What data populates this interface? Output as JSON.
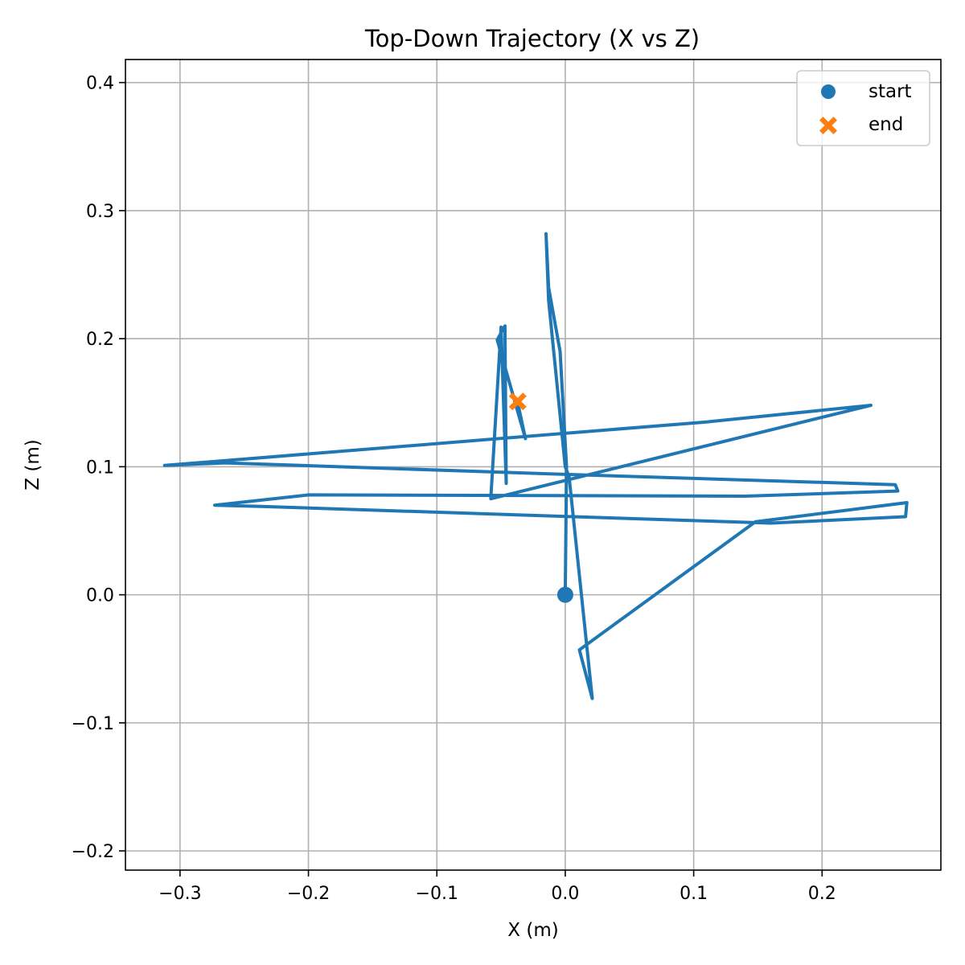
{
  "chart_data": {
    "type": "line",
    "title": "Top-Down Trajectory (X vs Z)",
    "xlabel": "X (m)",
    "ylabel": "Z (m)",
    "xlim": [
      -0.3425,
      0.2925
    ],
    "ylim": [
      -0.215,
      0.418
    ],
    "x_ticks": [
      -0.3,
      -0.2,
      -0.1,
      0.0,
      0.1,
      0.2
    ],
    "x_tick_labels": [
      "−0.3",
      "−0.2",
      "−0.1",
      "0.0",
      "0.1",
      "0.2"
    ],
    "y_ticks": [
      -0.2,
      -0.1,
      0.0,
      0.1,
      0.2,
      0.3,
      0.4
    ],
    "y_tick_labels": [
      "−0.2",
      "−0.1",
      "0.0",
      "0.1",
      "0.2",
      "0.3",
      "0.4"
    ],
    "grid": true,
    "legend_position": "top-right",
    "colors": {
      "trajectory": "#1f77b4",
      "start": "#1f77b4",
      "end": "#ff7f0e"
    },
    "series": [
      {
        "type": "line",
        "points": [
          [
            0.0,
            0.0
          ],
          [
            0.001,
            0.1
          ],
          [
            -0.004,
            0.19
          ],
          [
            -0.013,
            0.24
          ],
          [
            -0.015,
            0.282
          ],
          [
            -0.013,
            0.23
          ],
          [
            0.0,
            0.1
          ],
          [
            0.003,
            0.092
          ],
          [
            0.021,
            -0.081
          ],
          [
            0.011,
            -0.043
          ],
          [
            0.148,
            0.057
          ],
          [
            0.266,
            0.072
          ],
          [
            0.265,
            0.061
          ],
          [
            0.16,
            0.056
          ],
          [
            -0.237,
            0.069
          ],
          [
            -0.273,
            0.07
          ],
          [
            -0.2,
            0.078
          ],
          [
            0.14,
            0.077
          ],
          [
            0.259,
            0.081
          ],
          [
            0.257,
            0.086
          ],
          [
            0.0,
            0.094
          ],
          [
            -0.265,
            0.103
          ],
          [
            -0.312,
            0.101
          ],
          [
            0.11,
            0.135
          ],
          [
            0.238,
            0.148
          ],
          [
            -0.058,
            0.075
          ],
          [
            -0.05,
            0.209
          ],
          [
            -0.046,
            0.087
          ],
          [
            -0.047,
            0.21
          ],
          [
            -0.053,
            0.199
          ],
          [
            -0.031,
            0.122
          ],
          [
            -0.037,
            0.15
          ]
        ]
      },
      {
        "name": "start",
        "type": "scatter",
        "marker": "circle",
        "points": [
          [
            0.0,
            0.0
          ]
        ]
      },
      {
        "name": "end",
        "type": "scatter",
        "marker": "x",
        "points": [
          [
            -0.037,
            0.151
          ]
        ]
      }
    ]
  }
}
